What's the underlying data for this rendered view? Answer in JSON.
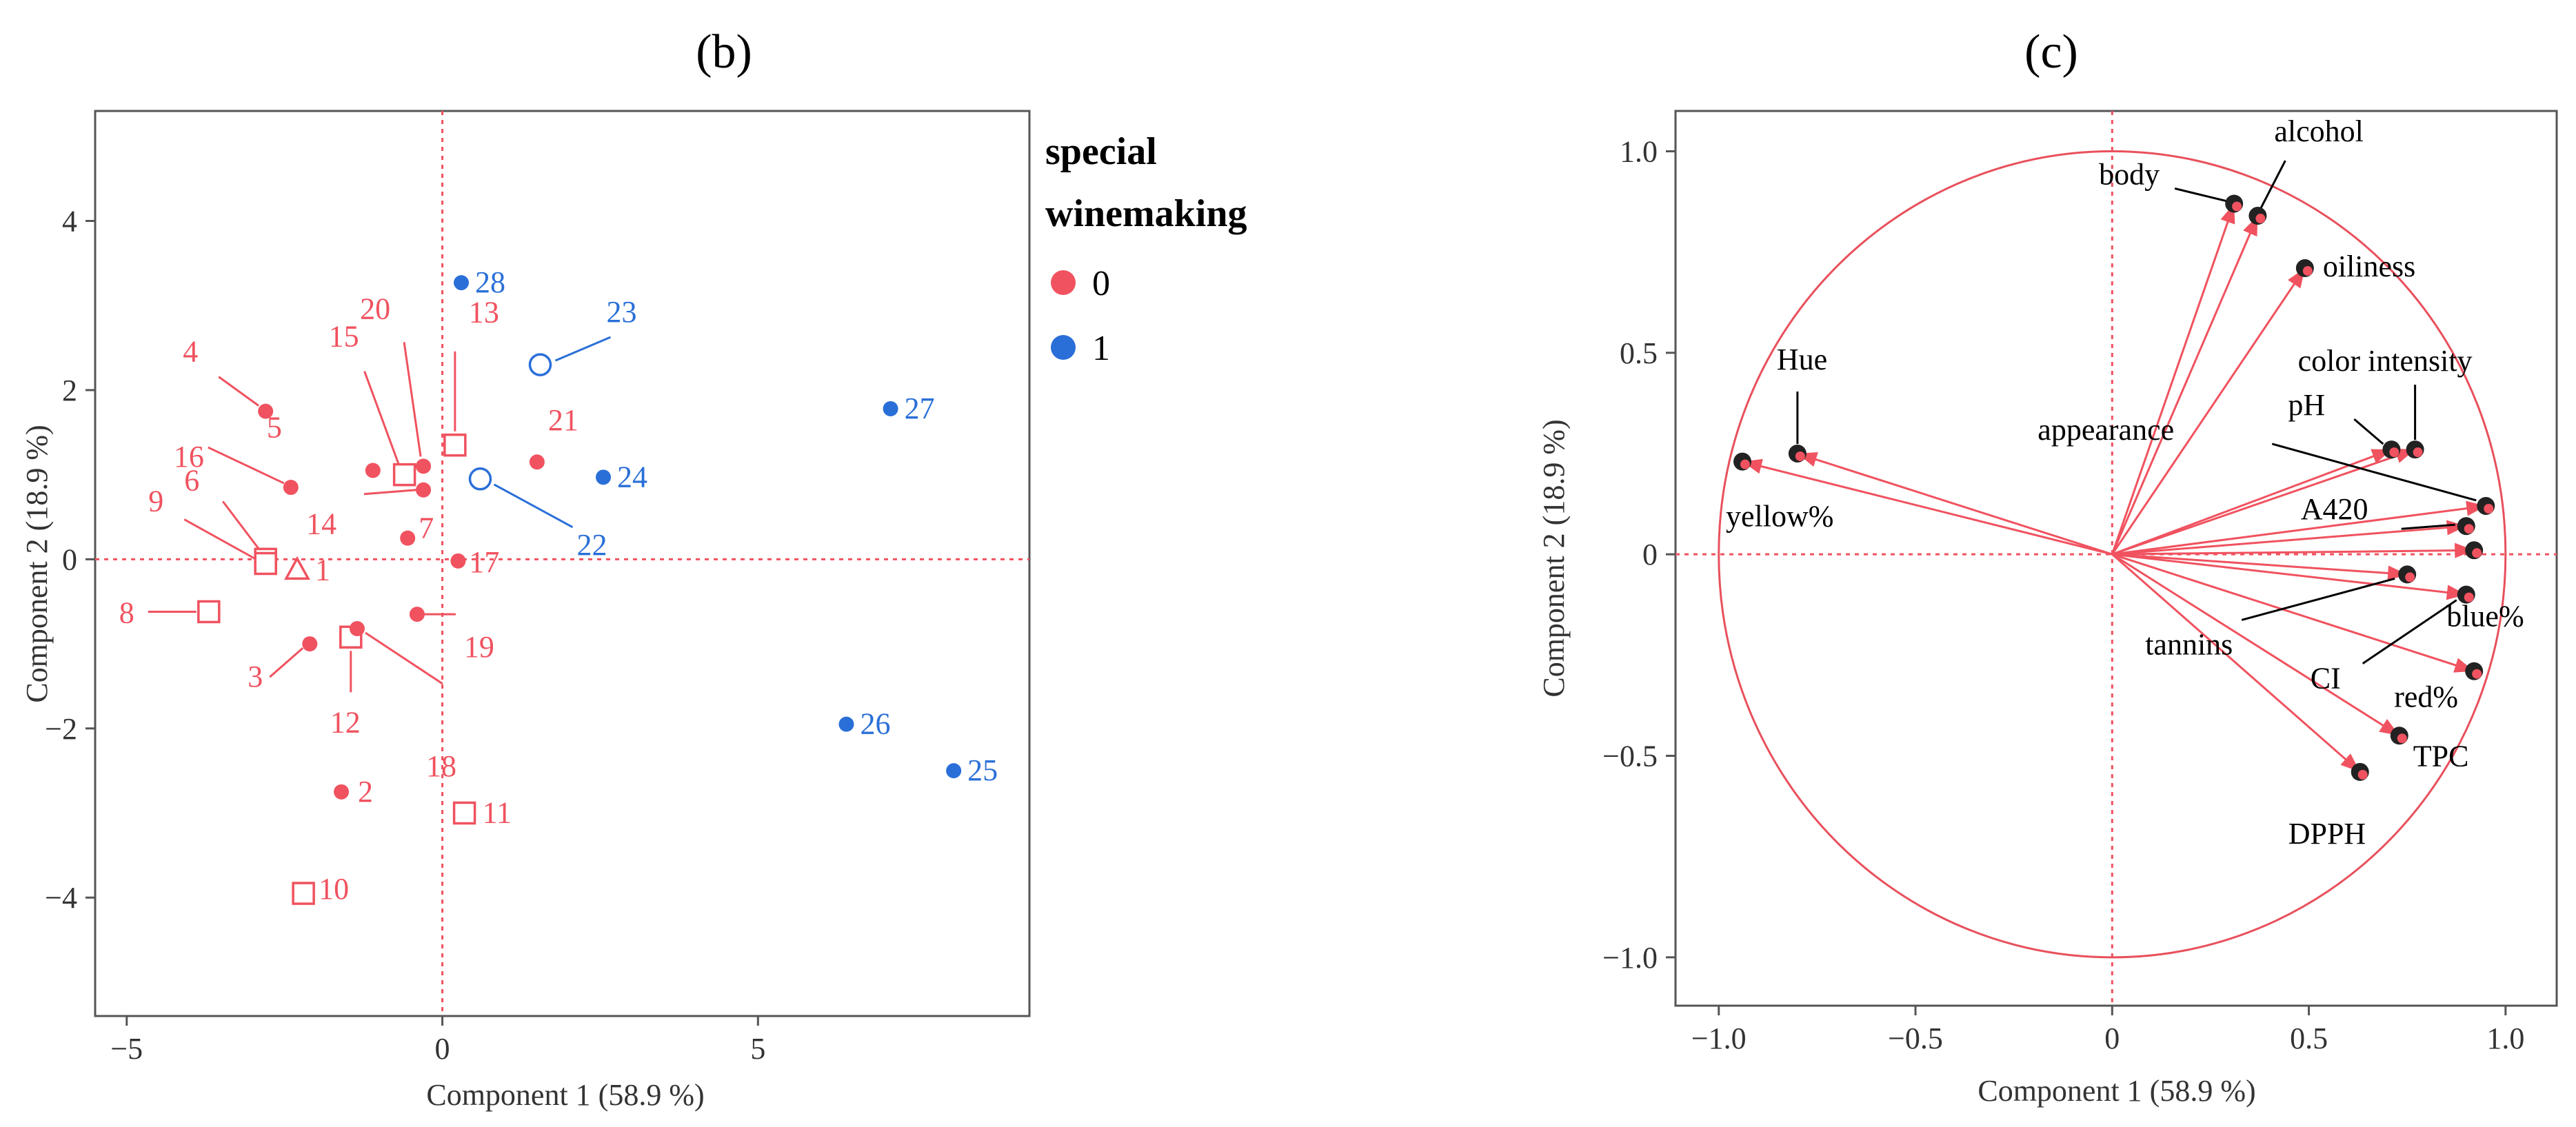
{
  "colors": {
    "group0": "#f0525f",
    "group1": "#2a6fd8",
    "circle": "#e8505c",
    "arrow": "#f0525f",
    "dot": "#222222"
  },
  "chart_data": [
    {
      "panel": "(b)",
      "type": "scatter",
      "xlabel": "Component 1  (58.9 %)",
      "ylabel": "Component 2  (18.9 %)",
      "xlim": [
        -5.5,
        9.3
      ],
      "ylim": [
        -5.4,
        5.3
      ],
      "xticks": [
        -5,
        0,
        5
      ],
      "yticks": [
        4,
        2,
        0,
        -2,
        -4
      ],
      "xtick_labels": [
        "−5",
        "0",
        "5"
      ],
      "ytick_labels": [
        "4",
        "2",
        "0",
        "−2",
        "−4"
      ],
      "legend": {
        "title_line1": "special",
        "title_line2": "winemaking",
        "entries": [
          {
            "label": "0",
            "group": 0
          },
          {
            "label": "1",
            "group": 1
          }
        ]
      },
      "points": [
        {
          "id": "1",
          "x": -2.3,
          "y": -0.13,
          "group": 0,
          "marker": "triangle"
        },
        {
          "id": "2",
          "x": -1.6,
          "y": -2.75,
          "group": 0,
          "marker": "dot"
        },
        {
          "id": "3",
          "x": -2.1,
          "y": -1.0,
          "group": 0,
          "marker": "dot"
        },
        {
          "id": "4",
          "x": -2.8,
          "y": 1.75,
          "group": 0,
          "marker": "dot"
        },
        {
          "id": "5",
          "x": -1.1,
          "y": 1.05,
          "group": 0,
          "marker": "dot"
        },
        {
          "id": "6",
          "x": -2.8,
          "y": 0.0,
          "group": 0,
          "marker": "square"
        },
        {
          "id": "7",
          "x": -0.55,
          "y": 0.25,
          "group": 0,
          "marker": "dot"
        },
        {
          "id": "8",
          "x": -3.7,
          "y": -0.62,
          "group": 0,
          "marker": "square"
        },
        {
          "id": "9",
          "x": -2.8,
          "y": -0.05,
          "group": 0,
          "marker": "square"
        },
        {
          "id": "10",
          "x": -2.2,
          "y": -3.95,
          "group": 0,
          "marker": "square"
        },
        {
          "id": "11",
          "x": 0.35,
          "y": -3.0,
          "group": 0,
          "marker": "square"
        },
        {
          "id": "12",
          "x": -1.45,
          "y": -0.92,
          "group": 0,
          "marker": "square"
        },
        {
          "id": "13",
          "x": 0.2,
          "y": 1.35,
          "group": 0,
          "marker": "square"
        },
        {
          "id": "14",
          "x": -0.3,
          "y": 0.82,
          "group": 0,
          "marker": "dot"
        },
        {
          "id": "15",
          "x": -0.6,
          "y": 1.0,
          "group": 0,
          "marker": "square"
        },
        {
          "id": "16",
          "x": -2.4,
          "y": 0.85,
          "group": 0,
          "marker": "dot"
        },
        {
          "id": "17",
          "x": 0.25,
          "y": -0.02,
          "group": 0,
          "marker": "dot"
        },
        {
          "id": "18",
          "x": -1.35,
          "y": -0.82,
          "group": 0,
          "marker": "dot"
        },
        {
          "id": "19",
          "x": -0.4,
          "y": -0.65,
          "group": 0,
          "marker": "dot"
        },
        {
          "id": "20",
          "x": -0.3,
          "y": 1.1,
          "group": 0,
          "marker": "dot"
        },
        {
          "id": "21",
          "x": 1.5,
          "y": 1.15,
          "group": 0,
          "marker": "dot"
        },
        {
          "id": "22",
          "x": 0.6,
          "y": 0.95,
          "group": 1,
          "marker": "circle"
        },
        {
          "id": "23",
          "x": 1.55,
          "y": 2.3,
          "group": 1,
          "marker": "circle"
        },
        {
          "id": "24",
          "x": 2.55,
          "y": 0.97,
          "group": 1,
          "marker": "dot"
        },
        {
          "id": "25",
          "x": 8.1,
          "y": -2.5,
          "group": 1,
          "marker": "dot"
        },
        {
          "id": "26",
          "x": 6.4,
          "y": -1.95,
          "group": 1,
          "marker": "dot"
        },
        {
          "id": "27",
          "x": 7.1,
          "y": 1.78,
          "group": 1,
          "marker": "dot"
        },
        {
          "id": "28",
          "x": 0.3,
          "y": 3.27,
          "group": 1,
          "marker": "dot"
        }
      ]
    },
    {
      "panel": "(c)",
      "type": "loadings",
      "xlabel": "Component 1  (58.9 %)",
      "ylabel": "Component 2  (18.9 %)",
      "xlim": [
        -1.11,
        1.13
      ],
      "ylim": [
        -1.12,
        1.1
      ],
      "xticks": [
        -1.0,
        -0.5,
        0,
        0.5,
        1.0
      ],
      "yticks": [
        1.0,
        0.5,
        0,
        -0.5,
        -1.0
      ],
      "xtick_labels": [
        "−1.0",
        "−0.5",
        "0",
        "0.5",
        "1.0"
      ],
      "ytick_labels": [
        "1.0",
        "0.5",
        "0",
        "−0.5",
        "−1.0"
      ],
      "variables": [
        {
          "name": "alcohol",
          "x": 0.37,
          "y": 0.84
        },
        {
          "name": "body",
          "x": 0.31,
          "y": 0.87
        },
        {
          "name": "oiliness",
          "x": 0.49,
          "y": 0.71
        },
        {
          "name": "color intensity",
          "x": 0.77,
          "y": 0.26
        },
        {
          "name": "pH",
          "x": 0.71,
          "y": 0.26
        },
        {
          "name": "appearance",
          "x": 0.95,
          "y": 0.12
        },
        {
          "name": "A420",
          "x": 0.9,
          "y": 0.07
        },
        {
          "name": "blue%",
          "x": 0.92,
          "y": 0.01
        },
        {
          "name": "CI",
          "x": 0.9,
          "y": -0.1
        },
        {
          "name": "tannins",
          "x": 0.75,
          "y": -0.05
        },
        {
          "name": "red%",
          "x": 0.92,
          "y": -0.29
        },
        {
          "name": "TPC",
          "x": 0.73,
          "y": -0.45
        },
        {
          "name": "DPPH",
          "x": 0.63,
          "y": -0.54
        },
        {
          "name": "Hue",
          "x": -0.8,
          "y": 0.25
        },
        {
          "name": "yellow%",
          "x": -0.94,
          "y": 0.23
        }
      ]
    }
  ]
}
